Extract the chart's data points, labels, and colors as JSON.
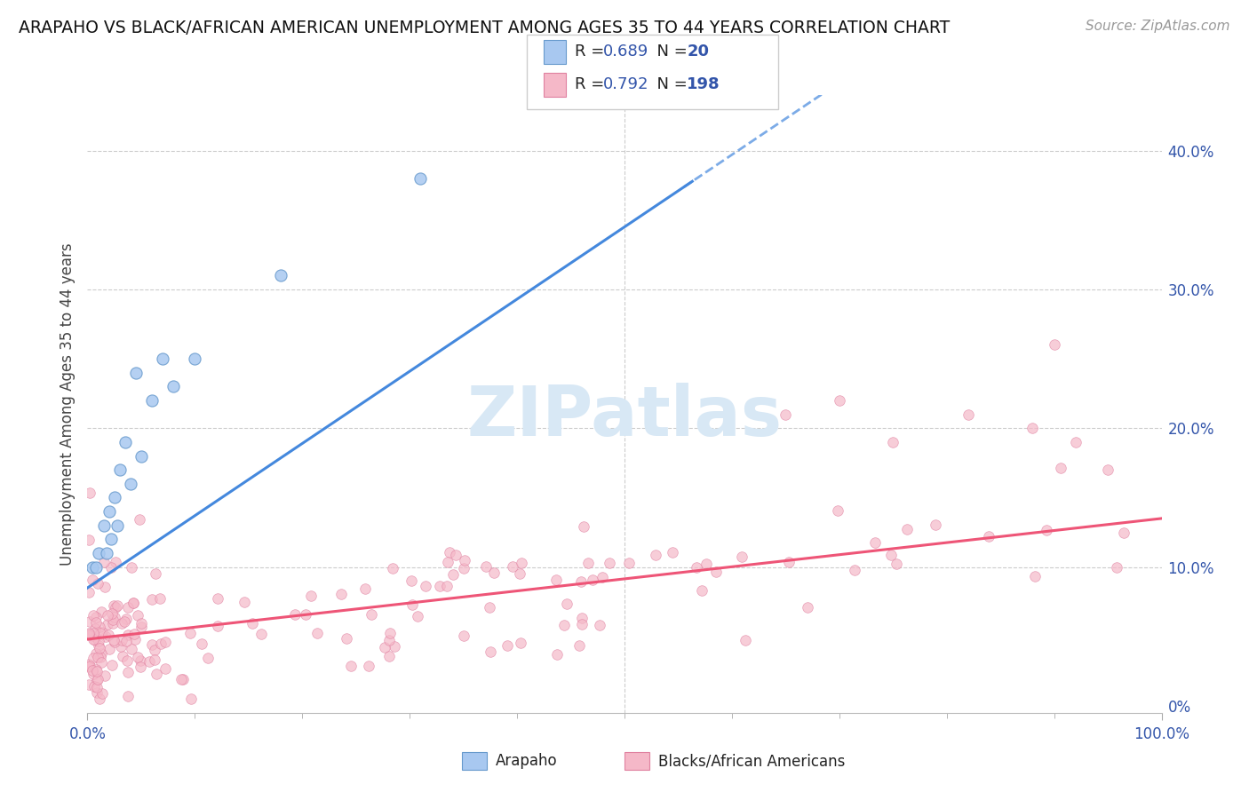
{
  "title": "ARAPAHO VS BLACK/AFRICAN AMERICAN UNEMPLOYMENT AMONG AGES 35 TO 44 YEARS CORRELATION CHART",
  "source": "Source: ZipAtlas.com",
  "ylabel": "Unemployment Among Ages 35 to 44 years",
  "right_ytick_vals": [
    0.0,
    0.1,
    0.2,
    0.3,
    0.4
  ],
  "right_ytick_labels": [
    "0%",
    "10.0%",
    "20.0%",
    "30.0%",
    "40.0%"
  ],
  "arapaho_color": "#A8C8F0",
  "arapaho_edge": "#6699CC",
  "black_color": "#F5B8C8",
  "black_edge": "#E080A0",
  "line1_color": "#4488DD",
  "line2_color": "#EE5577",
  "background": "#FFFFFF",
  "watermark_color": "#D8E8F5",
  "xlim": [
    0.0,
    1.0
  ],
  "ylim": [
    -0.005,
    0.44
  ],
  "arapaho_x": [
    0.005,
    0.008,
    0.01,
    0.015,
    0.018,
    0.02,
    0.022,
    0.025,
    0.028,
    0.03,
    0.035,
    0.04,
    0.045,
    0.05,
    0.06,
    0.07,
    0.08,
    0.1,
    0.18,
    0.31
  ],
  "arapaho_y": [
    0.1,
    0.1,
    0.11,
    0.13,
    0.11,
    0.14,
    0.12,
    0.15,
    0.13,
    0.17,
    0.19,
    0.16,
    0.24,
    0.18,
    0.22,
    0.25,
    0.23,
    0.25,
    0.31,
    0.38
  ],
  "line1_x_solid_end": 0.56,
  "line1_intercept": 0.085,
  "line1_slope": 0.52,
  "line2_intercept": 0.048,
  "line2_slope": 0.087
}
